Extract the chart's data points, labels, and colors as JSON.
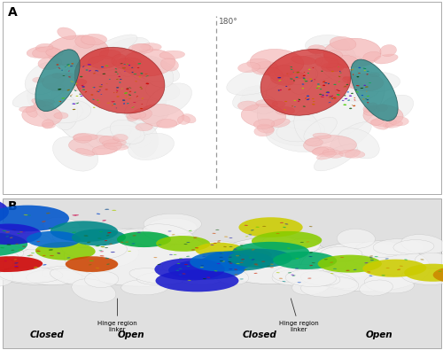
{
  "fig_width": 5.0,
  "fig_height": 3.95,
  "dpi": 100,
  "background_color": "#ffffff",
  "panel_A_label": "A",
  "panel_B_label": "B",
  "label_fontsize": 10,
  "label_fontweight": "bold",
  "rotation_label": "180°",
  "rotation_fontsize": 6.5,
  "dashed_line_color": "#999999",
  "closed_label": "Closed",
  "open_label": "Open",
  "hinge_label": "Hinge region\nlinker",
  "sublabel_fontsize": 7.5,
  "sublabel_fontweight": "bold",
  "pink_color": "#f4b8b8",
  "white_blob_color": "#e8e8e8",
  "white_blob_edge": "#bbbbbb",
  "teal_color": "#2b8a8a",
  "red_flap_color": "#cc2020",
  "panel_A_bg": "#ffffff",
  "panel_B_bg": "#e0e0e0",
  "panel_border_color": "#aaaaaa",
  "annotation_color": "#333333"
}
